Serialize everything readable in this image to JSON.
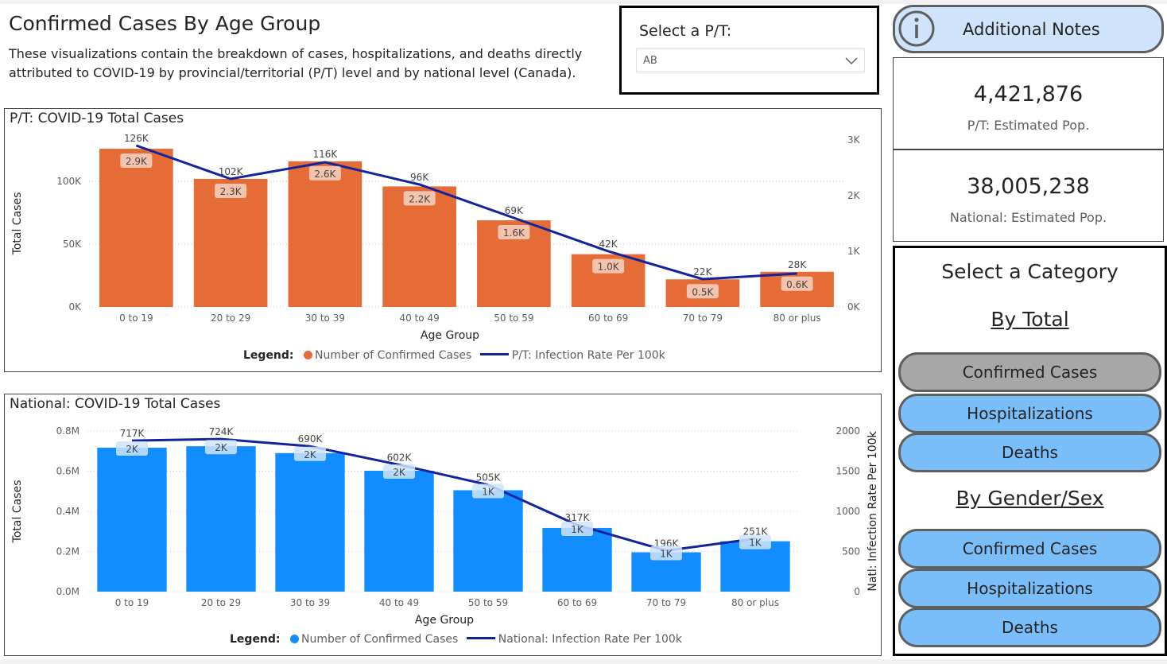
{
  "page": {
    "title": "Confirmed Cases By Age Group",
    "description": "These visualizations contain the breakdown of cases, hospitalizations, and deaths directly attributed to COVID-19 by provincial/territorial (P/T) level and by national level (Canada)."
  },
  "pt_select": {
    "label": "Select a P/T:",
    "value": "AB",
    "icon": "chevron-down-icon"
  },
  "notes_button": {
    "label": "Additional Notes",
    "icon": "info-icon"
  },
  "cards": [
    {
      "value": "4,421,876",
      "label": "P/T: Estimated Pop."
    },
    {
      "value": "38,005,238",
      "label": "National: Estimated Pop."
    }
  ],
  "category_panel": {
    "title": "Select a Category",
    "by_total": "By Total",
    "by_gender": "By Gender/Sex",
    "total_buttons": [
      "Confirmed Cases",
      "Hospitalizations",
      "Deaths"
    ],
    "gender_buttons": [
      "Confirmed Cases",
      "Hospitalizations",
      "Deaths"
    ],
    "active": "total-confirmed-cases"
  },
  "colors": {
    "pt_bar": "#e66c37",
    "nat_bar": "#118dff",
    "line": "#12239e",
    "active_button": "#a7a7a7",
    "button": "#79bdf9"
  },
  "chart_data": [
    {
      "type": "bar",
      "title": "P/T: COVID-19 Total Cases",
      "xlabel": "Age Group",
      "ylabel": "Total Cases",
      "y2label": "",
      "categories": [
        "0 to 19",
        "20 to 29",
        "30 to 39",
        "40 to 49",
        "50 to 59",
        "60 to 69",
        "70 to 79",
        "80 or plus"
      ],
      "bars": {
        "name": "Number of Confirmed Cases",
        "values": [
          126000,
          102000,
          116000,
          96000,
          69000,
          42000,
          22000,
          28000
        ],
        "labels": [
          "126K",
          "102K",
          "116K",
          "96K",
          "69K",
          "42K",
          "22K",
          "28K"
        ]
      },
      "line": {
        "name": "P/T: Infection Rate Per 100k",
        "values": [
          2900,
          2300,
          2600,
          2200,
          1600,
          1000,
          500,
          600
        ],
        "labels": [
          "2.9K",
          "2.3K",
          "2.6K",
          "2.2K",
          "1.6K",
          "1.0K",
          "0.5K",
          "0.6K"
        ]
      },
      "ylim": [
        0,
        133000
      ],
      "y2lim": [
        0,
        3000
      ],
      "yticks": [
        "0K",
        "50K",
        "100K"
      ],
      "y2ticks": [
        "0K",
        "1K",
        "2K",
        "3K"
      ],
      "legend_title": "Legend:",
      "legend_position": "bottom-center",
      "grid": true
    },
    {
      "type": "bar",
      "title": "National: COVID-19 Total Cases",
      "xlabel": "Age Group",
      "ylabel": "Total Cases",
      "y2label": "Natl: Infection Rate Per 100k",
      "categories": [
        "0 to 19",
        "20 to 29",
        "30 to 39",
        "40 to 49",
        "50 to 59",
        "60 to 69",
        "70 to 79",
        "80 or plus"
      ],
      "bars": {
        "name": "Number of Confirmed Cases",
        "values": [
          717000,
          724000,
          690000,
          602000,
          505000,
          317000,
          196000,
          251000
        ],
        "labels": [
          "717K",
          "724K",
          "690K",
          "602K",
          "505K",
          "317K",
          "196K",
          "251K"
        ]
      },
      "line": {
        "name": "National: Infection Rate Per 100k",
        "values": [
          1880,
          1900,
          1810,
          1580,
          1330,
          830,
          510,
          660
        ],
        "labels": [
          "2K",
          "2K",
          "2K",
          "2K",
          "1K",
          "1K",
          "1K",
          "1K"
        ]
      },
      "ylim": [
        0,
        800000
      ],
      "y2lim": [
        0,
        2000
      ],
      "yticks": [
        "0.0M",
        "0.2M",
        "0.4M",
        "0.6M",
        "0.8M"
      ],
      "y2ticks": [
        "0",
        "500",
        "1000",
        "1500",
        "2000"
      ],
      "legend_title": "Legend:",
      "legend_position": "bottom-center",
      "grid": true
    }
  ]
}
